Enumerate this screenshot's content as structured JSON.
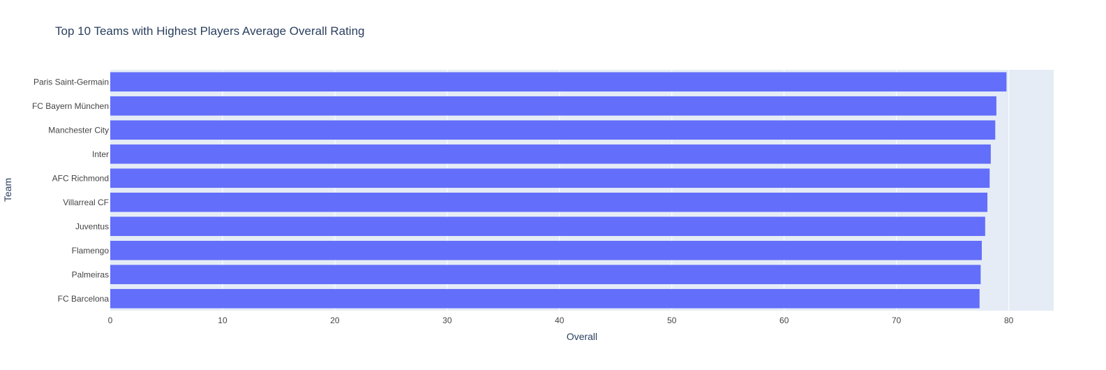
{
  "chart_data": {
    "type": "bar",
    "orientation": "horizontal",
    "title": "Top 10 Teams with Highest Players Average Overall Rating",
    "xlabel": "Overall",
    "ylabel": "Team",
    "categories": [
      "Paris Saint-Germain",
      "FC Bayern München",
      "Manchester City",
      "Inter",
      "AFC Richmond",
      "Villarreal CF",
      "Juventus",
      "Flamengo",
      "Palmeiras",
      "FC Barcelona"
    ],
    "values": [
      79.8,
      78.9,
      78.8,
      78.4,
      78.3,
      78.1,
      77.9,
      77.6,
      77.5,
      77.4
    ],
    "xlim": [
      0,
      84
    ],
    "xticks": [
      0,
      10,
      20,
      30,
      40,
      50,
      60,
      70,
      80
    ],
    "grid": true,
    "colors": {
      "bar": "#636efa",
      "plot_background": "#e5ecf6",
      "grid": "#ffffff",
      "text": "#2a3f5f",
      "axis_text": "#444444"
    }
  }
}
